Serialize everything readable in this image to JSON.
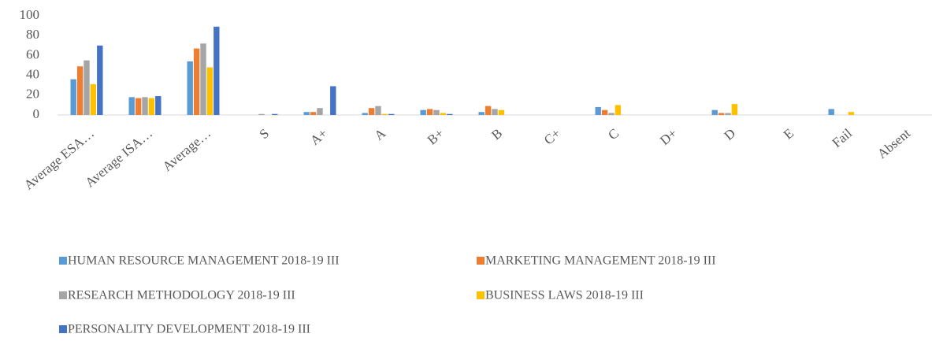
{
  "chart_data": {
    "type": "bar",
    "categories": [
      "Average ESA…",
      "Average ISA…",
      "Average…",
      "S",
      "A+",
      "A",
      "B+",
      "B",
      "C+",
      "C",
      "D+",
      "D",
      "E",
      "Fail",
      "Absent"
    ],
    "series": [
      {
        "name": "HUMAN RESOURCE MANAGEMENT 2018-19 III",
        "color": "#5b9bd5",
        "values": [
          36,
          18,
          54,
          0,
          3,
          2,
          5,
          3,
          0,
          8,
          0,
          5,
          0,
          6,
          0
        ]
      },
      {
        "name": "MARKETING MANAGEMENT 2018-19 III",
        "color": "#ed7d31",
        "values": [
          49,
          17,
          67,
          0,
          3,
          7,
          6,
          9,
          0,
          5,
          0,
          2,
          0,
          0,
          0
        ]
      },
      {
        "name": "RESEARCH METHODOLOGY 2018-19 III",
        "color": "#a5a5a5",
        "values": [
          55,
          18,
          72,
          1,
          7,
          9,
          5,
          6,
          0,
          2,
          0,
          2,
          0,
          0,
          0
        ]
      },
      {
        "name": "BUSINESS LAWS 2018-19 III",
        "color": "#ffc000",
        "values": [
          31,
          17,
          48,
          0,
          0,
          1,
          2,
          5,
          0,
          10,
          0,
          11,
          0,
          3,
          0
        ]
      },
      {
        "name": "PERSONALITY DEVELOPMENT 2018-19 III",
        "color": "#4472c4",
        "values": [
          70,
          19,
          89,
          1,
          29,
          1,
          1,
          0,
          0,
          0,
          0,
          0,
          0,
          0,
          0
        ]
      }
    ],
    "ylim": [
      0,
      100
    ],
    "yticks": [
      0,
      20,
      40,
      60,
      80,
      100
    ],
    "grid": false
  }
}
